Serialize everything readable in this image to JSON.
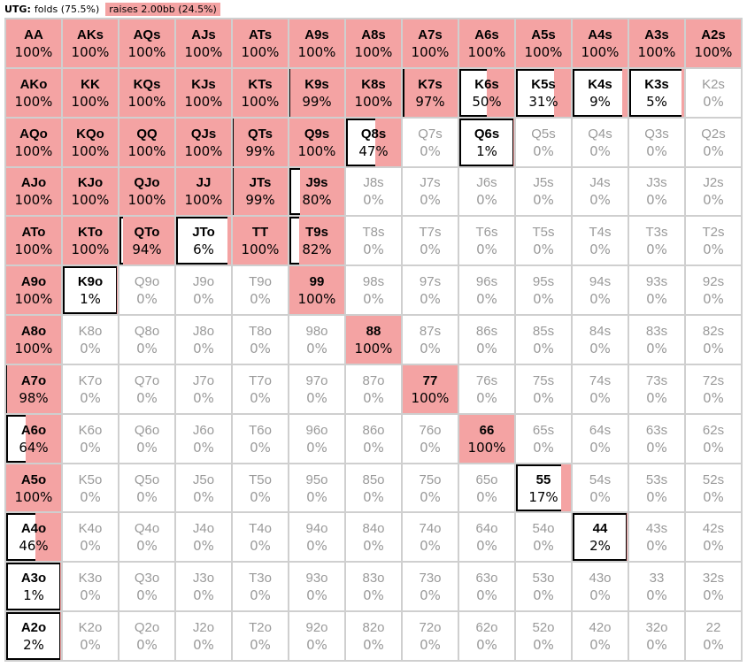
{
  "header": {
    "position": "UTG:",
    "fold_label": "folds (75.5%)",
    "raise_label": "raises 2.00bb (24.5%)"
  },
  "colors": {
    "raise": "#f4a3a3",
    "fold": "#ffffff"
  },
  "rows": [
    [
      [
        "AA",
        100
      ],
      [
        "AKs",
        100
      ],
      [
        "AQs",
        100
      ],
      [
        "AJs",
        100
      ],
      [
        "ATs",
        100
      ],
      [
        "A9s",
        100
      ],
      [
        "A8s",
        100
      ],
      [
        "A7s",
        100
      ],
      [
        "A6s",
        100
      ],
      [
        "A5s",
        100
      ],
      [
        "A4s",
        100
      ],
      [
        "A3s",
        100
      ],
      [
        "A2s",
        100
      ]
    ],
    [
      [
        "AKo",
        100
      ],
      [
        "KK",
        100
      ],
      [
        "KQs",
        100
      ],
      [
        "KJs",
        100
      ],
      [
        "KTs",
        100
      ],
      [
        "K9s",
        99
      ],
      [
        "K8s",
        100
      ],
      [
        "K7s",
        97
      ],
      [
        "K6s",
        50
      ],
      [
        "K5s",
        31
      ],
      [
        "K4s",
        9
      ],
      [
        "K3s",
        5
      ],
      [
        "K2s",
        0
      ]
    ],
    [
      [
        "AQo",
        100
      ],
      [
        "KQo",
        100
      ],
      [
        "QQ",
        100
      ],
      [
        "QJs",
        100
      ],
      [
        "QTs",
        99
      ],
      [
        "Q9s",
        100
      ],
      [
        "Q8s",
        47
      ],
      [
        "Q7s",
        0
      ],
      [
        "Q6s",
        1
      ],
      [
        "Q5s",
        0
      ],
      [
        "Q4s",
        0
      ],
      [
        "Q3s",
        0
      ],
      [
        "Q2s",
        0
      ]
    ],
    [
      [
        "AJo",
        100
      ],
      [
        "KJo",
        100
      ],
      [
        "QJo",
        100
      ],
      [
        "JJ",
        100
      ],
      [
        "JTs",
        99
      ],
      [
        "J9s",
        80
      ],
      [
        "J8s",
        0
      ],
      [
        "J7s",
        0
      ],
      [
        "J6s",
        0
      ],
      [
        "J5s",
        0
      ],
      [
        "J4s",
        0
      ],
      [
        "J3s",
        0
      ],
      [
        "J2s",
        0
      ]
    ],
    [
      [
        "ATo",
        100
      ],
      [
        "KTo",
        100
      ],
      [
        "QTo",
        94
      ],
      [
        "JTo",
        6
      ],
      [
        "TT",
        100
      ],
      [
        "T9s",
        82
      ],
      [
        "T8s",
        0
      ],
      [
        "T7s",
        0
      ],
      [
        "T6s",
        0
      ],
      [
        "T5s",
        0
      ],
      [
        "T4s",
        0
      ],
      [
        "T3s",
        0
      ],
      [
        "T2s",
        0
      ]
    ],
    [
      [
        "A9o",
        100
      ],
      [
        "K9o",
        1
      ],
      [
        "Q9o",
        0
      ],
      [
        "J9o",
        0
      ],
      [
        "T9o",
        0
      ],
      [
        "99",
        100
      ],
      [
        "98s",
        0
      ],
      [
        "97s",
        0
      ],
      [
        "96s",
        0
      ],
      [
        "95s",
        0
      ],
      [
        "94s",
        0
      ],
      [
        "93s",
        0
      ],
      [
        "92s",
        0
      ]
    ],
    [
      [
        "A8o",
        100
      ],
      [
        "K8o",
        0
      ],
      [
        "Q8o",
        0
      ],
      [
        "J8o",
        0
      ],
      [
        "T8o",
        0
      ],
      [
        "98o",
        0
      ],
      [
        "88",
        100
      ],
      [
        "87s",
        0
      ],
      [
        "86s",
        0
      ],
      [
        "85s",
        0
      ],
      [
        "84s",
        0
      ],
      [
        "83s",
        0
      ],
      [
        "82s",
        0
      ]
    ],
    [
      [
        "A7o",
        98
      ],
      [
        "K7o",
        0
      ],
      [
        "Q7o",
        0
      ],
      [
        "J7o",
        0
      ],
      [
        "T7o",
        0
      ],
      [
        "97o",
        0
      ],
      [
        "87o",
        0
      ],
      [
        "77",
        100
      ],
      [
        "76s",
        0
      ],
      [
        "75s",
        0
      ],
      [
        "74s",
        0
      ],
      [
        "73s",
        0
      ],
      [
        "72s",
        0
      ]
    ],
    [
      [
        "A6o",
        64
      ],
      [
        "K6o",
        0
      ],
      [
        "Q6o",
        0
      ],
      [
        "J6o",
        0
      ],
      [
        "T6o",
        0
      ],
      [
        "96o",
        0
      ],
      [
        "86o",
        0
      ],
      [
        "76o",
        0
      ],
      [
        "66",
        100
      ],
      [
        "65s",
        0
      ],
      [
        "64s",
        0
      ],
      [
        "63s",
        0
      ],
      [
        "62s",
        0
      ]
    ],
    [
      [
        "A5o",
        100
      ],
      [
        "K5o",
        0
      ],
      [
        "Q5o",
        0
      ],
      [
        "J5o",
        0
      ],
      [
        "T5o",
        0
      ],
      [
        "95o",
        0
      ],
      [
        "85o",
        0
      ],
      [
        "75o",
        0
      ],
      [
        "65o",
        0
      ],
      [
        "55",
        17
      ],
      [
        "54s",
        0
      ],
      [
        "53s",
        0
      ],
      [
        "52s",
        0
      ]
    ],
    [
      [
        "A4o",
        46
      ],
      [
        "K4o",
        0
      ],
      [
        "Q4o",
        0
      ],
      [
        "J4o",
        0
      ],
      [
        "T4o",
        0
      ],
      [
        "94o",
        0
      ],
      [
        "84o",
        0
      ],
      [
        "74o",
        0
      ],
      [
        "64o",
        0
      ],
      [
        "54o",
        0
      ],
      [
        "44",
        2
      ],
      [
        "43s",
        0
      ],
      [
        "42s",
        0
      ]
    ],
    [
      [
        "A3o",
        1
      ],
      [
        "K3o",
        0
      ],
      [
        "Q3o",
        0
      ],
      [
        "J3o",
        0
      ],
      [
        "T3o",
        0
      ],
      [
        "93o",
        0
      ],
      [
        "83o",
        0
      ],
      [
        "73o",
        0
      ],
      [
        "63o",
        0
      ],
      [
        "53o",
        0
      ],
      [
        "43o",
        0
      ],
      [
        "33",
        0
      ],
      [
        "32s",
        0
      ]
    ],
    [
      [
        "A2o",
        2
      ],
      [
        "K2o",
        0
      ],
      [
        "Q2o",
        0
      ],
      [
        "J2o",
        0
      ],
      [
        "T2o",
        0
      ],
      [
        "92o",
        0
      ],
      [
        "82o",
        0
      ],
      [
        "72o",
        0
      ],
      [
        "62o",
        0
      ],
      [
        "52o",
        0
      ],
      [
        "42o",
        0
      ],
      [
        "32o",
        0
      ],
      [
        "22",
        0
      ]
    ]
  ]
}
